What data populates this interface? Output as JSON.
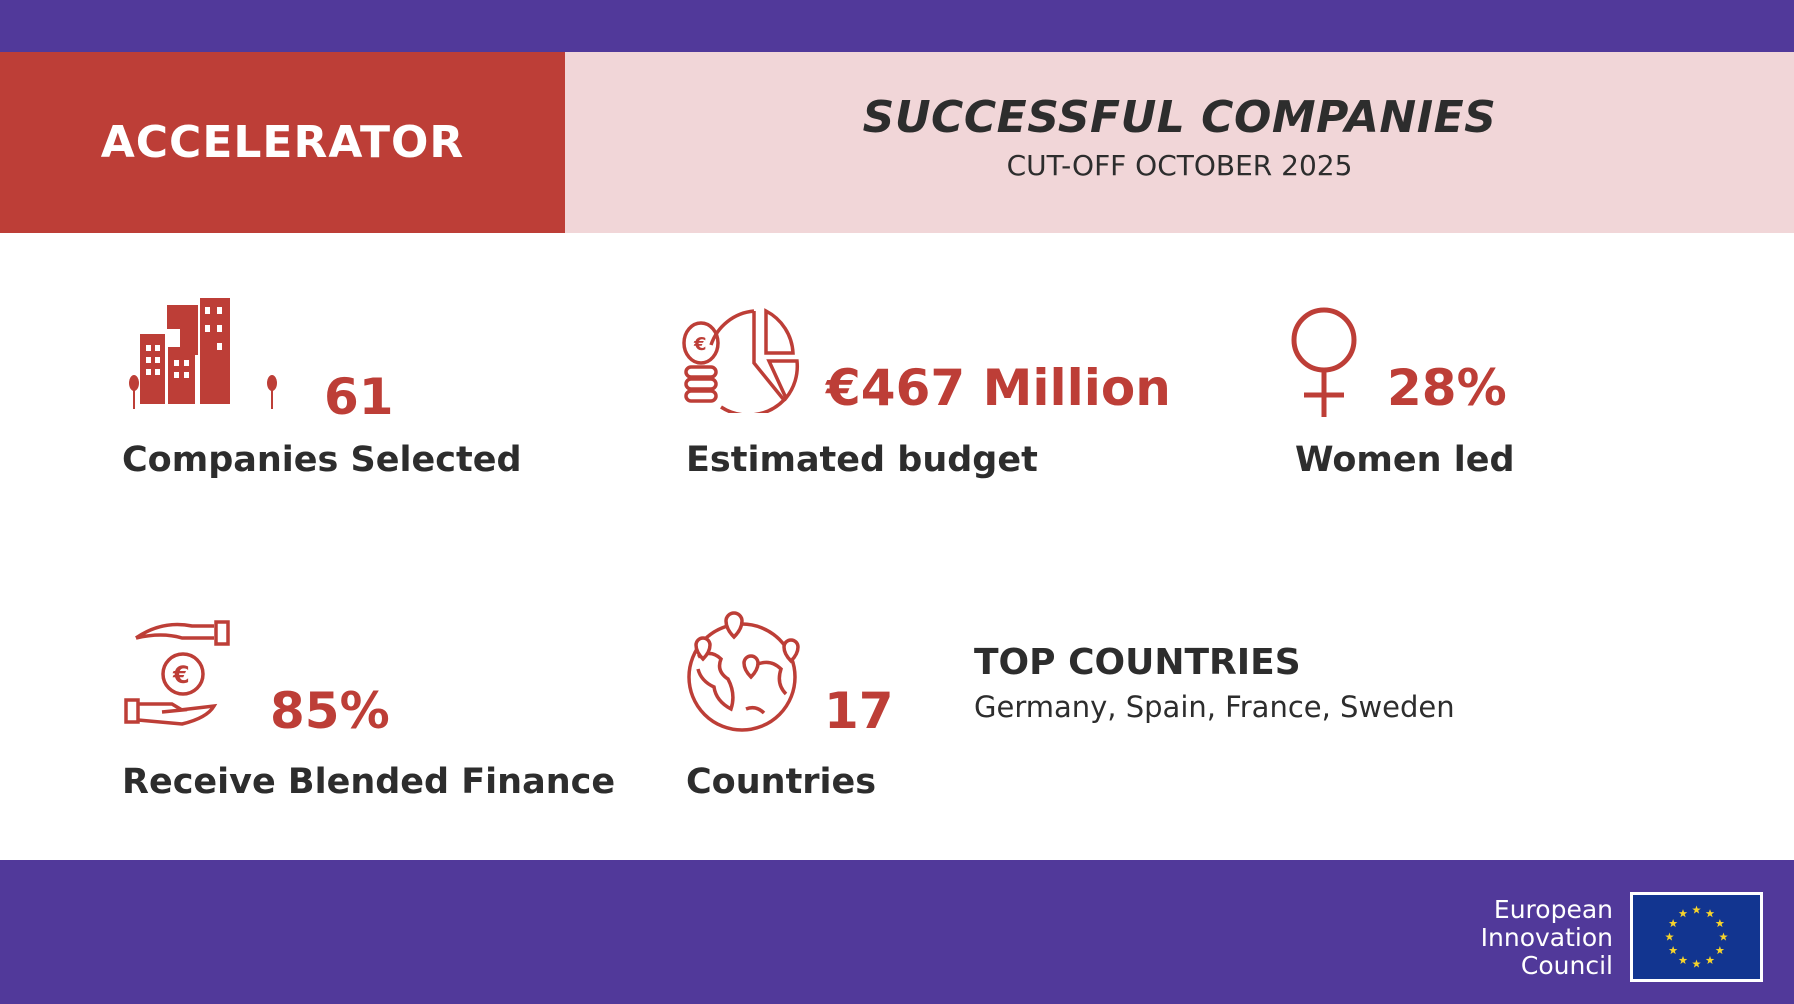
{
  "header": {
    "program": "ACCELERATOR",
    "title": "SUCCESSFUL COMPANIES",
    "subtitle": "CUT-OFF OCTOBER 2025"
  },
  "stats": [
    {
      "icon": "buildings-icon",
      "value": "61",
      "label": "Companies Selected"
    },
    {
      "icon": "budget-pie-icon",
      "value": "€467 Million",
      "label": "Estimated budget"
    },
    {
      "icon": "female-symbol-icon",
      "value": "28%",
      "label": "Women led"
    },
    {
      "icon": "hand-euro-icon",
      "value": "85%",
      "label": "Receive Blended Finance"
    },
    {
      "icon": "globe-pins-icon",
      "value": "17",
      "label": "Countries"
    }
  ],
  "top_countries": {
    "heading": "TOP COUNTRIES",
    "list": "Germany, Spain, France, Sweden"
  },
  "footer": {
    "logo_lines": [
      "European",
      "Innovation",
      "Council"
    ]
  },
  "colors": {
    "purple": "#51399a",
    "red": "#bd3e37",
    "pink": "#f1d6d8",
    "text": "#2d2d2d",
    "eu_blue": "#123590",
    "eu_gold": "#f6d32b"
  }
}
